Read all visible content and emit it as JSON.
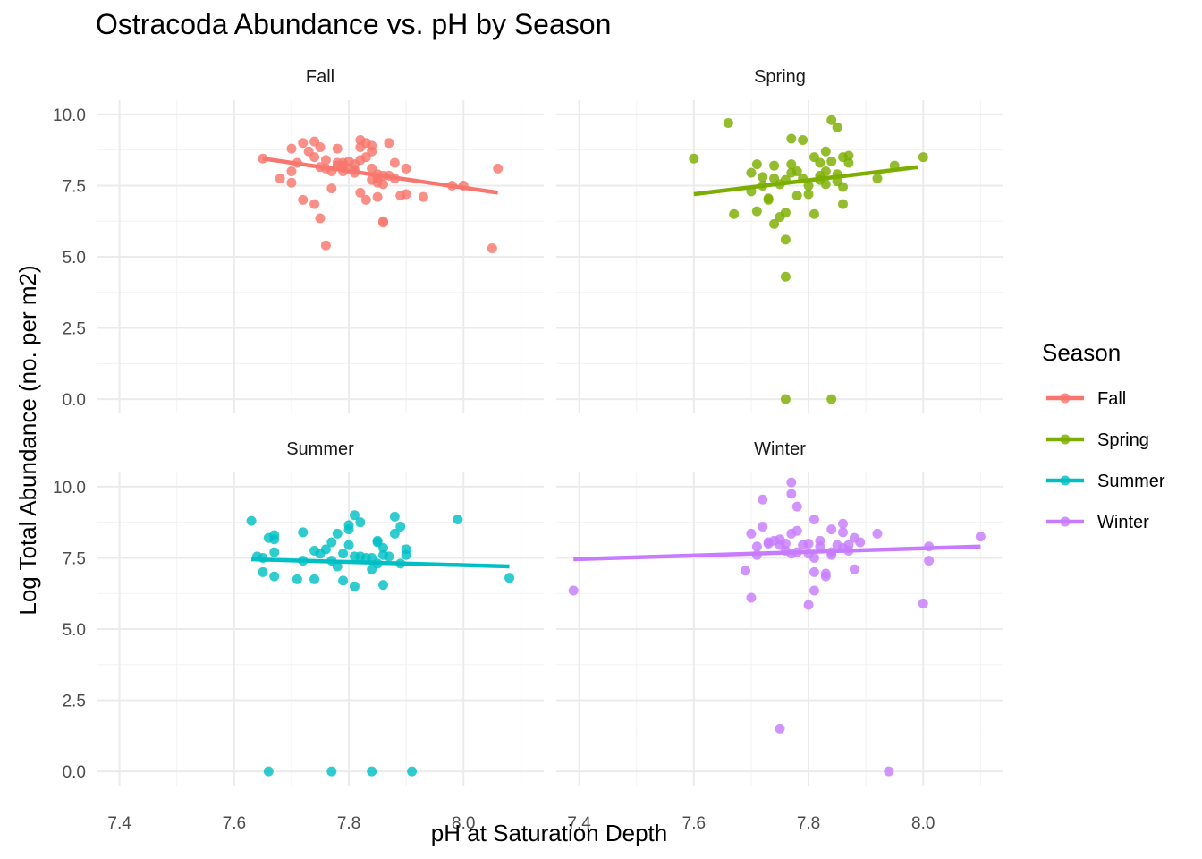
{
  "chart_data": {
    "type": "scatter",
    "title": "Ostracoda Abundance vs. pH by Season",
    "xlabel": "pH at Saturation Depth",
    "ylabel": "Log Total Abundance (no. per m2)",
    "xlim": [
      7.36,
      8.14
    ],
    "ylim": [
      -0.5,
      10.5
    ],
    "x_ticks": [
      "7.4",
      "7.6",
      "7.8",
      "8.0"
    ],
    "y_ticks": [
      "0.0",
      "2.5",
      "5.0",
      "7.5",
      "10.0"
    ],
    "legend_title": "Season",
    "legend_position": "right",
    "grid": true,
    "colors": {
      "Fall": "#F8766D",
      "Spring": "#7CAE00",
      "Summer": "#00BFC4",
      "Winter": "#C77CFF"
    },
    "series": [
      {
        "name": "Fall",
        "trend": [
          [
            7.65,
            8.45
          ],
          [
            8.06,
            7.25
          ]
        ],
        "points": [
          [
            7.65,
            8.45
          ],
          [
            7.68,
            7.75
          ],
          [
            7.7,
            8.0
          ],
          [
            7.7,
            7.6
          ],
          [
            7.7,
            8.8
          ],
          [
            7.71,
            8.3
          ],
          [
            7.72,
            9.0
          ],
          [
            7.72,
            7.0
          ],
          [
            7.73,
            8.7
          ],
          [
            7.74,
            9.05
          ],
          [
            7.74,
            6.85
          ],
          [
            7.74,
            8.5
          ],
          [
            7.75,
            8.85
          ],
          [
            7.75,
            8.15
          ],
          [
            7.75,
            6.35
          ],
          [
            7.76,
            8.4
          ],
          [
            7.76,
            8.1
          ],
          [
            7.76,
            5.4
          ],
          [
            7.77,
            8.0
          ],
          [
            7.77,
            7.4
          ],
          [
            7.78,
            8.8
          ],
          [
            7.78,
            8.3
          ],
          [
            7.78,
            8.2
          ],
          [
            7.79,
            8.0
          ],
          [
            7.79,
            8.3
          ],
          [
            7.79,
            8.2
          ],
          [
            7.8,
            8.35
          ],
          [
            7.8,
            8.1
          ],
          [
            7.81,
            8.05
          ],
          [
            7.81,
            8.25
          ],
          [
            7.81,
            7.95
          ],
          [
            7.82,
            8.4
          ],
          [
            7.82,
            8.85
          ],
          [
            7.82,
            7.25
          ],
          [
            7.82,
            9.1
          ],
          [
            7.83,
            7.0
          ],
          [
            7.83,
            9.0
          ],
          [
            7.83,
            8.5
          ],
          [
            7.84,
            8.9
          ],
          [
            7.84,
            8.1
          ],
          [
            7.84,
            7.7
          ],
          [
            7.84,
            8.7
          ],
          [
            7.85,
            7.1
          ],
          [
            7.85,
            7.6
          ],
          [
            7.85,
            7.9
          ],
          [
            7.85,
            7.75
          ],
          [
            7.86,
            7.55
          ],
          [
            7.86,
            7.85
          ],
          [
            7.86,
            6.25
          ],
          [
            7.86,
            6.2
          ],
          [
            7.87,
            9.0
          ],
          [
            7.87,
            7.85
          ],
          [
            7.88,
            8.3
          ],
          [
            7.88,
            7.75
          ],
          [
            7.89,
            7.15
          ],
          [
            7.9,
            8.1
          ],
          [
            7.9,
            7.2
          ],
          [
            7.93,
            7.1
          ],
          [
            7.98,
            7.5
          ],
          [
            8.0,
            7.5
          ],
          [
            8.05,
            5.3
          ],
          [
            8.06,
            8.1
          ]
        ]
      },
      {
        "name": "Spring",
        "trend": [
          [
            7.6,
            7.2
          ],
          [
            7.99,
            8.15
          ]
        ],
        "points": [
          [
            7.6,
            8.45
          ],
          [
            7.66,
            9.7
          ],
          [
            7.67,
            6.5
          ],
          [
            7.7,
            7.3
          ],
          [
            7.7,
            7.95
          ],
          [
            7.71,
            8.25
          ],
          [
            7.71,
            6.6
          ],
          [
            7.72,
            7.5
          ],
          [
            7.72,
            7.8
          ],
          [
            7.73,
            7.0
          ],
          [
            7.73,
            7.05
          ],
          [
            7.74,
            6.15
          ],
          [
            7.74,
            8.2
          ],
          [
            7.74,
            7.75
          ],
          [
            7.75,
            6.4
          ],
          [
            7.75,
            7.55
          ],
          [
            7.76,
            7.7
          ],
          [
            7.76,
            5.6
          ],
          [
            7.76,
            4.3
          ],
          [
            7.76,
            6.55
          ],
          [
            7.77,
            9.15
          ],
          [
            7.77,
            8.25
          ],
          [
            7.77,
            7.95
          ],
          [
            7.78,
            7.15
          ],
          [
            7.78,
            8.0
          ],
          [
            7.79,
            9.1
          ],
          [
            7.79,
            7.75
          ],
          [
            7.8,
            7.2
          ],
          [
            7.8,
            7.5
          ],
          [
            7.81,
            8.5
          ],
          [
            7.81,
            6.5
          ],
          [
            7.82,
            8.3
          ],
          [
            7.82,
            7.7
          ],
          [
            7.82,
            7.85
          ],
          [
            7.83,
            8.7
          ],
          [
            7.83,
            8.0
          ],
          [
            7.83,
            7.55
          ],
          [
            7.84,
            9.8
          ],
          [
            7.84,
            8.35
          ],
          [
            7.85,
            7.65
          ],
          [
            7.85,
            9.55
          ],
          [
            7.85,
            7.9
          ],
          [
            7.86,
            8.5
          ],
          [
            7.86,
            6.85
          ],
          [
            7.86,
            7.45
          ],
          [
            7.87,
            8.3
          ],
          [
            7.87,
            8.55
          ],
          [
            7.92,
            7.75
          ],
          [
            7.95,
            8.2
          ],
          [
            8.0,
            8.5
          ],
          [
            7.76,
            0.0
          ],
          [
            7.84,
            0.0
          ]
        ]
      },
      {
        "name": "Summer",
        "trend": [
          [
            7.63,
            7.45
          ],
          [
            8.08,
            7.2
          ]
        ],
        "points": [
          [
            7.63,
            8.8
          ],
          [
            7.64,
            7.55
          ],
          [
            7.65,
            7.0
          ],
          [
            7.65,
            7.5
          ],
          [
            7.66,
            8.2
          ],
          [
            7.67,
            8.3
          ],
          [
            7.67,
            7.7
          ],
          [
            7.67,
            8.15
          ],
          [
            7.67,
            6.85
          ],
          [
            7.71,
            6.75
          ],
          [
            7.72,
            8.4
          ],
          [
            7.72,
            7.4
          ],
          [
            7.74,
            7.75
          ],
          [
            7.74,
            6.75
          ],
          [
            7.75,
            7.65
          ],
          [
            7.76,
            7.8
          ],
          [
            7.77,
            8.05
          ],
          [
            7.77,
            7.4
          ],
          [
            7.78,
            8.35
          ],
          [
            7.78,
            7.2
          ],
          [
            7.79,
            7.65
          ],
          [
            7.79,
            6.7
          ],
          [
            7.8,
            8.65
          ],
          [
            7.8,
            7.95
          ],
          [
            7.8,
            8.5
          ],
          [
            7.81,
            7.55
          ],
          [
            7.81,
            9.0
          ],
          [
            7.81,
            6.5
          ],
          [
            7.82,
            8.75
          ],
          [
            7.82,
            7.55
          ],
          [
            7.83,
            7.5
          ],
          [
            7.84,
            7.1
          ],
          [
            7.84,
            7.5
          ],
          [
            7.85,
            8.1
          ],
          [
            7.85,
            7.3
          ],
          [
            7.85,
            8.05
          ],
          [
            7.86,
            7.85
          ],
          [
            7.86,
            7.6
          ],
          [
            7.86,
            6.55
          ],
          [
            7.87,
            7.55
          ],
          [
            7.88,
            8.95
          ],
          [
            7.88,
            8.35
          ],
          [
            7.89,
            8.6
          ],
          [
            7.89,
            7.3
          ],
          [
            7.9,
            7.8
          ],
          [
            7.9,
            7.6
          ],
          [
            7.99,
            8.85
          ],
          [
            8.08,
            6.8
          ],
          [
            7.66,
            0.0
          ],
          [
            7.77,
            0.0
          ],
          [
            7.84,
            0.0
          ],
          [
            7.91,
            0.0
          ]
        ]
      },
      {
        "name": "Winter",
        "trend": [
          [
            7.39,
            7.45
          ],
          [
            8.1,
            7.9
          ]
        ],
        "points": [
          [
            7.39,
            6.35
          ],
          [
            7.69,
            7.05
          ],
          [
            7.7,
            6.1
          ],
          [
            7.7,
            8.35
          ],
          [
            7.71,
            7.9
          ],
          [
            7.71,
            7.6
          ],
          [
            7.72,
            9.55
          ],
          [
            7.72,
            8.6
          ],
          [
            7.73,
            8.0
          ],
          [
            7.73,
            8.05
          ],
          [
            7.74,
            8.1
          ],
          [
            7.75,
            7.95
          ],
          [
            7.75,
            8.15
          ],
          [
            7.75,
            1.5
          ],
          [
            7.76,
            7.75
          ],
          [
            7.76,
            8.0
          ],
          [
            7.77,
            8.35
          ],
          [
            7.77,
            7.65
          ],
          [
            7.77,
            10.15
          ],
          [
            7.77,
            9.75
          ],
          [
            7.78,
            9.3
          ],
          [
            7.78,
            8.45
          ],
          [
            7.78,
            7.7
          ],
          [
            7.79,
            7.95
          ],
          [
            7.8,
            7.65
          ],
          [
            7.8,
            8.0
          ],
          [
            7.8,
            5.85
          ],
          [
            7.81,
            8.85
          ],
          [
            7.81,
            7.5
          ],
          [
            7.81,
            6.35
          ],
          [
            7.81,
            7.0
          ],
          [
            7.82,
            7.9
          ],
          [
            7.82,
            8.1
          ],
          [
            7.83,
            6.85
          ],
          [
            7.83,
            6.95
          ],
          [
            7.84,
            7.6
          ],
          [
            7.84,
            7.7
          ],
          [
            7.84,
            8.5
          ],
          [
            7.85,
            7.95
          ],
          [
            7.86,
            8.7
          ],
          [
            7.86,
            8.4
          ],
          [
            7.86,
            7.85
          ],
          [
            7.87,
            7.95
          ],
          [
            7.87,
            7.75
          ],
          [
            7.88,
            8.2
          ],
          [
            7.88,
            7.1
          ],
          [
            7.89,
            8.05
          ],
          [
            7.92,
            8.35
          ],
          [
            7.94,
            0.0
          ],
          [
            8.0,
            5.9
          ],
          [
            8.01,
            7.4
          ],
          [
            8.01,
            7.9
          ],
          [
            8.1,
            8.25
          ]
        ]
      }
    ]
  }
}
